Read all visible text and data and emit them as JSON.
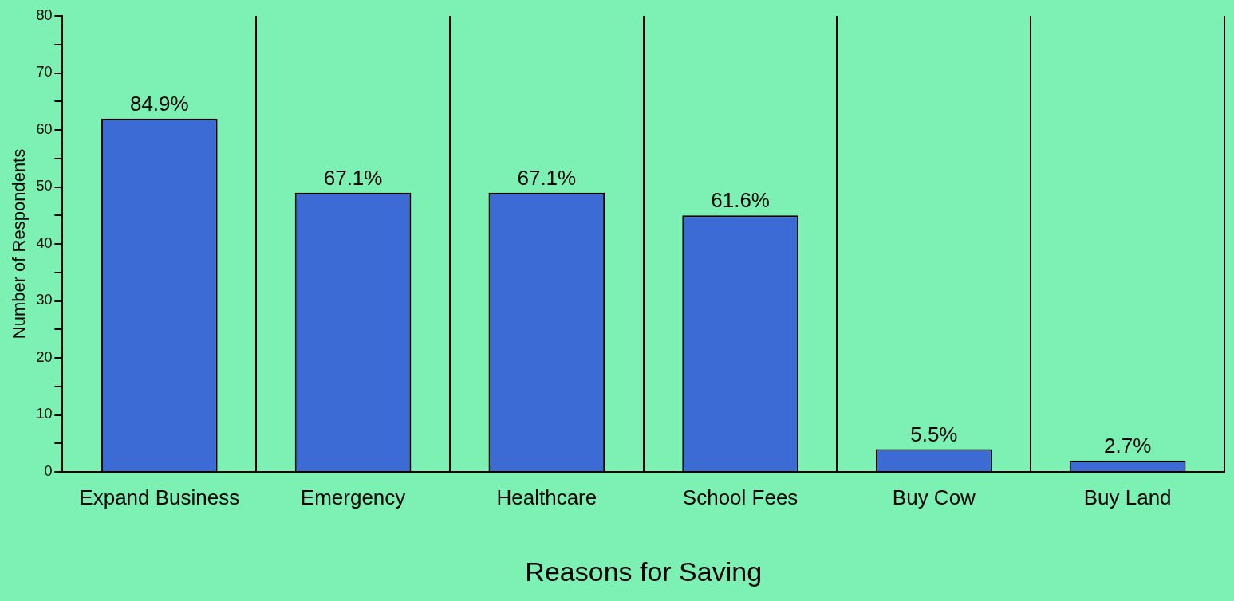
{
  "chart_data": {
    "type": "bar",
    "xlabel": "Reasons for Saving",
    "ylabel": "Number of Respondents",
    "categories": [
      "Expand Business",
      "Emergency",
      "Healthcare",
      "School Fees",
      "Buy Cow",
      "Buy Land"
    ],
    "values": [
      62,
      49,
      49,
      45,
      4,
      2
    ],
    "annotations": [
      {
        "text": "84.9%",
        "x": "Expand Business",
        "y": 62
      },
      {
        "text": "67.1%",
        "x": "Emergency",
        "y": 49
      },
      {
        "text": "67.1%",
        "x": "Healthcare",
        "y": 49
      },
      {
        "text": "61.6%",
        "x": "School Fees",
        "y": 45
      },
      {
        "text": "5.5%",
        "x": "Buy Cow",
        "y": 4
      },
      {
        "text": "2.7%",
        "x": "Buy Land",
        "y": 2
      }
    ],
    "color": "#3d6bd6",
    "ylim": [
      0,
      80
    ],
    "yticks": [
      0,
      {
        "value": 5,
        "label": null
      },
      10,
      {
        "value": 15,
        "label": null
      },
      20,
      {
        "value": 25,
        "label": null
      },
      30,
      {
        "value": 35,
        "label": null
      },
      40,
      {
        "value": 45,
        "label": null
      },
      50,
      {
        "value": 55,
        "label": null
      },
      60,
      {
        "value": 65,
        "label": null
      },
      70,
      {
        "value": 75,
        "label": null
      },
      80
    ],
    "grid": "x"
  }
}
